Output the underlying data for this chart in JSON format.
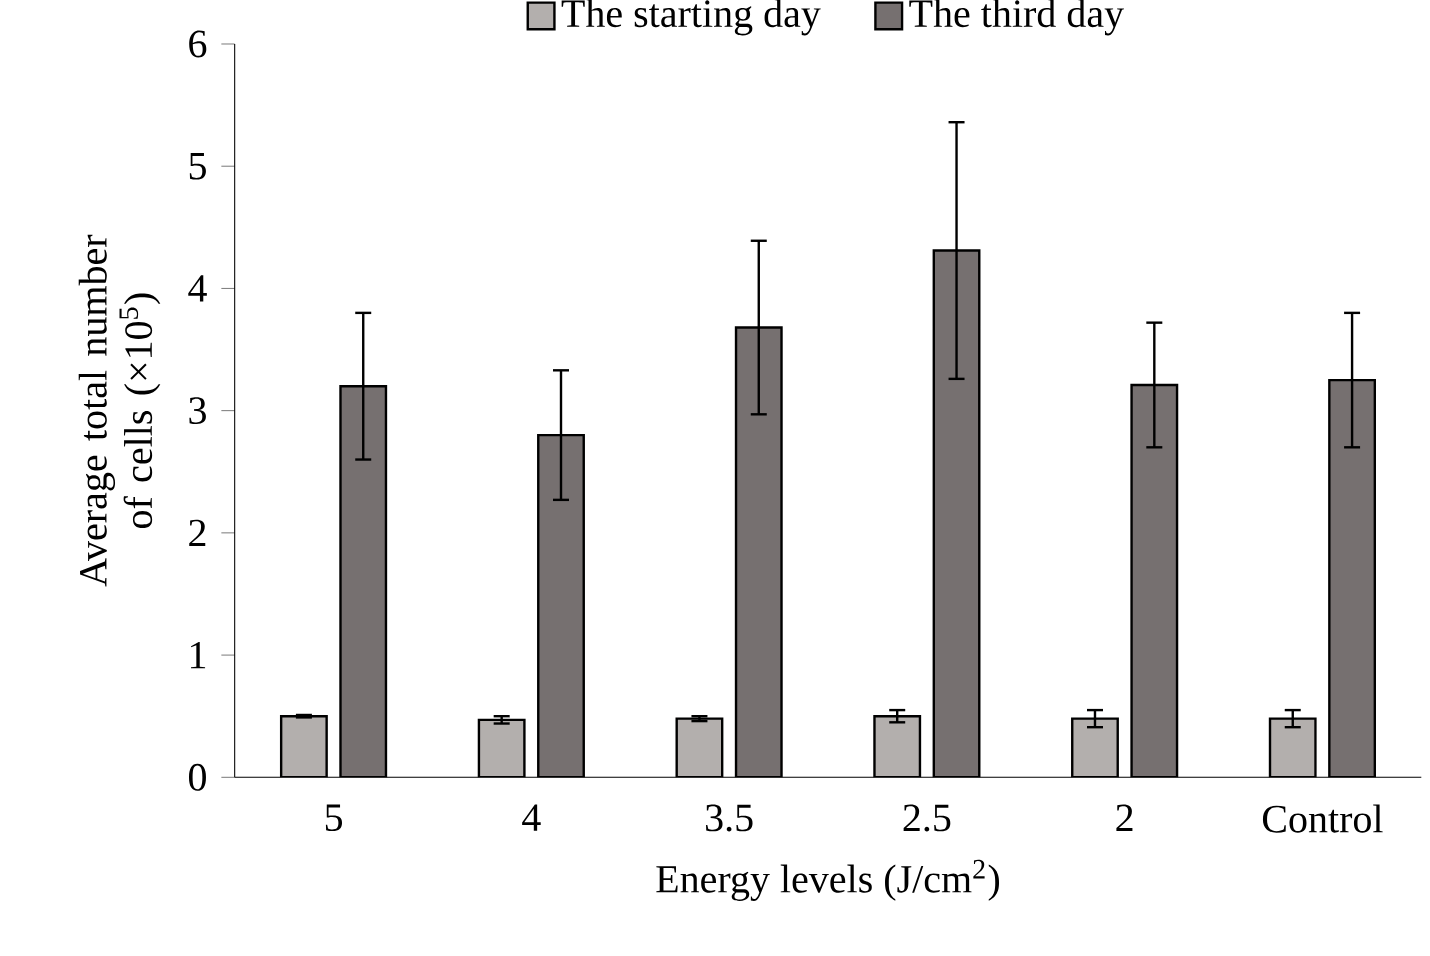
{
  "chart_data": {
    "type": "bar",
    "xlabel": "Energy levels (J/cm$^{2}$)",
    "ylabel": "Average total number of cells (×10$^{5}$)",
    "categories": [
      "5",
      "4",
      "3.5",
      "2.5",
      "2",
      "Control"
    ],
    "series": [
      {
        "name": "The starting day",
        "color": "#b3afad",
        "values": [
          0.5,
          0.47,
          0.48,
          0.5,
          0.48,
          0.48
        ],
        "errors": [
          0.01,
          0.03,
          0.02,
          0.05,
          0.07,
          0.07
        ]
      },
      {
        "name": "The third day",
        "color": "#767070",
        "values": [
          3.2,
          2.8,
          3.68,
          4.31,
          3.21,
          3.25
        ],
        "errors": [
          0.6,
          0.53,
          0.71,
          1.05,
          0.51,
          0.55
        ]
      }
    ],
    "ylim": [
      0,
      6
    ],
    "yticks": [
      0,
      1,
      2,
      3,
      4,
      5,
      6
    ],
    "legend": "top",
    "grid": false
  }
}
